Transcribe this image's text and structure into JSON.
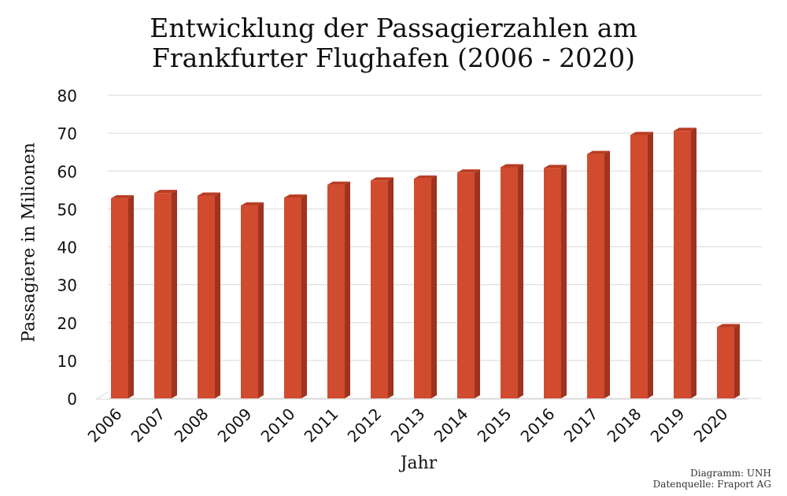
{
  "chart_data": {
    "type": "bar",
    "title_lines": [
      "Entwicklung der Passagierzahlen am",
      "Frankfurter Flughafen (2006 - 2020)"
    ],
    "xlabel": "Jahr",
    "ylabel": "Passagiere in Milionen",
    "categories": [
      "2006",
      "2007",
      "2008",
      "2009",
      "2010",
      "2011",
      "2012",
      "2013",
      "2014",
      "2015",
      "2016",
      "2017",
      "2018",
      "2019",
      "2020"
    ],
    "values": [
      52.8,
      54.2,
      53.5,
      50.9,
      53.0,
      56.4,
      57.5,
      58.0,
      59.6,
      61.0,
      60.8,
      64.5,
      69.5,
      70.6,
      18.8
    ],
    "ylim": [
      0,
      80
    ],
    "yticks": [
      "0",
      "10",
      "20",
      "30",
      "40",
      "50",
      "60",
      "70",
      "80"
    ],
    "grid": true,
    "bar_color": "#d14b2e",
    "bar_side_color": "#9e3420",
    "bar_top_color": "#b93d24"
  },
  "credits": {
    "line1": "Diagramm: UNH",
    "line2": "Datenquelle: Fraport AG"
  }
}
